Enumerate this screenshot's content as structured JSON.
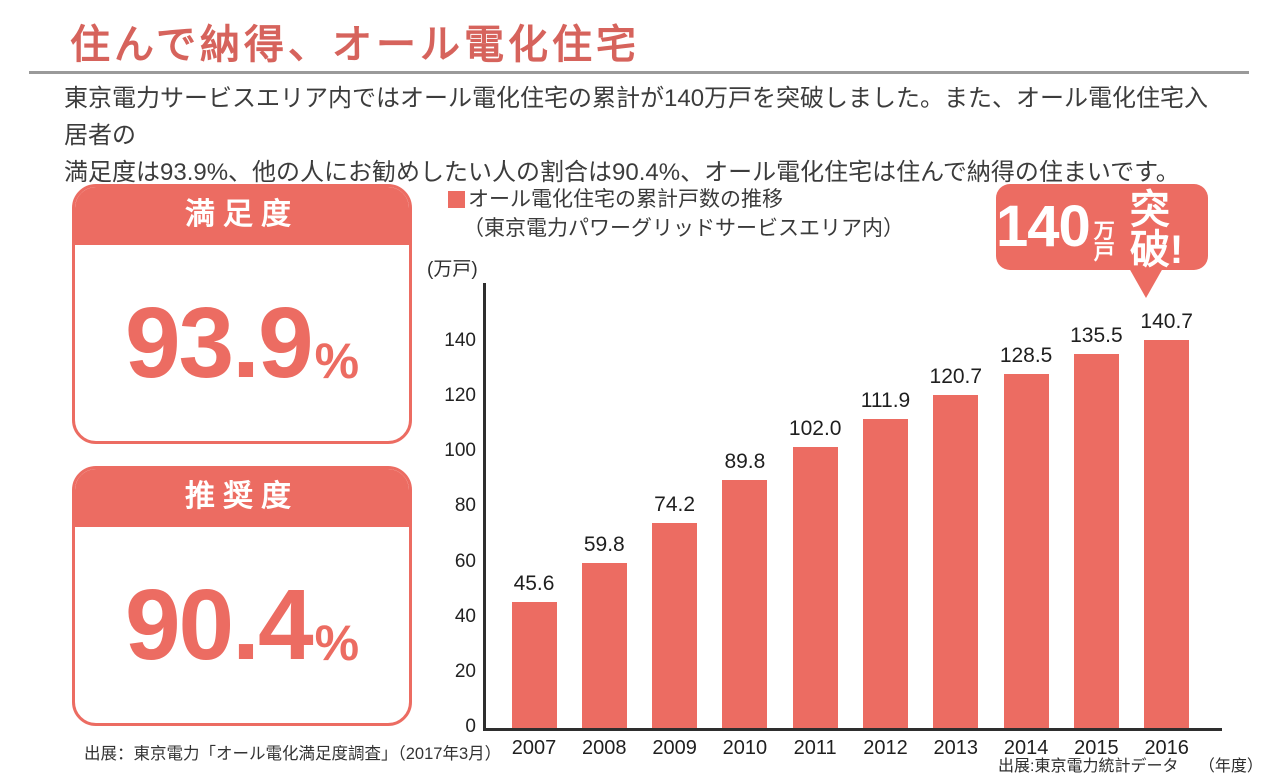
{
  "header": {
    "title": "住んで納得、オール電化住宅",
    "intro_lines": [
      "東京電力サービスエリア内ではオール電化住宅の累計が140万戸を突破しました。また、オール電化住宅入居者の",
      "満足度は93.9%、他の人にお勧めしたい人の割合は90.4%、オール電化住宅は住んで納得の住まいです。"
    ]
  },
  "cards": [
    {
      "label": "満足度",
      "value": "93.9",
      "unit": "%"
    },
    {
      "label": "推奨度",
      "value": "90.4",
      "unit": "%"
    }
  ],
  "cards_source": "出展：東京電力「オール電化満足度調査」（2017年3月）",
  "callout": {
    "big": "140",
    "small": "万戸",
    "emphasis": "突破!"
  },
  "chart_data": {
    "type": "bar",
    "title": "オール電化住宅の累計戸数の推移",
    "subtitle": "（東京電力パワーグリッドサービスエリア内）",
    "y_unit": "(万戸)",
    "x_unit": "（年度）",
    "source": "出展:東京電力統計データ",
    "categories": [
      "2007",
      "2008",
      "2009",
      "2010",
      "2011",
      "2012",
      "2013",
      "2014",
      "2015",
      "2016"
    ],
    "values": [
      45.6,
      59.8,
      74.2,
      89.8,
      102.0,
      111.9,
      120.7,
      128.5,
      135.5,
      140.7
    ],
    "value_labels": [
      "45.6",
      "59.8",
      "74.2",
      "89.8",
      "102.0",
      "111.9",
      "120.7",
      "128.5",
      "135.5",
      "140.7"
    ],
    "yticks": [
      0,
      20,
      40,
      60,
      80,
      100,
      120,
      140
    ],
    "ylim": [
      0,
      161
    ],
    "grid": false,
    "legend_position": "top-left",
    "bar_color": "#EC6C62"
  },
  "colors": {
    "accent": "#EC6C62",
    "title_red": "#D6635C",
    "body_text": "#3C3C3C",
    "axis": "#2E2E2E",
    "divider": "#9A9A9A"
  }
}
